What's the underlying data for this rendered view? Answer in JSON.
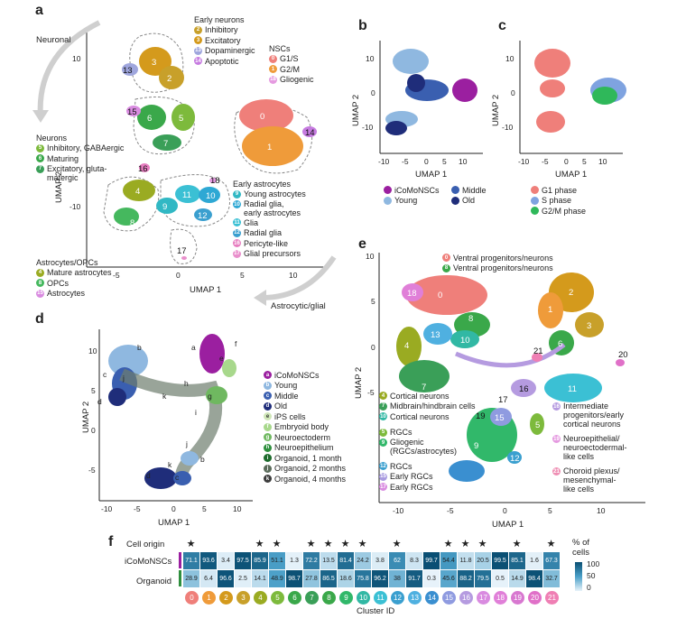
{
  "panels": [
    "a",
    "b",
    "c",
    "d",
    "e",
    "f"
  ],
  "a": {
    "neuronal_label": "Neuronal",
    "astro_glial_label": "Astrocytic/glial",
    "xlabel": "UMAP 1",
    "ylabel": "UMAP 2",
    "xticks": [
      "-5",
      "0",
      "5",
      "10"
    ],
    "yticks": [
      "10",
      "-10"
    ],
    "cluster_labels": [
      "0",
      "1",
      "2",
      "3",
      "4",
      "5",
      "6",
      "7",
      "8",
      "9",
      "10",
      "11",
      "12",
      "13",
      "14",
      "15",
      "16",
      "17",
      "18"
    ],
    "early_neurons": {
      "title": "Early neurons",
      "items": [
        {
          "id": "2",
          "label": "Inhibitory",
          "color": "#c8a02a"
        },
        {
          "id": "3",
          "label": "Excitatory",
          "color": "#d49a1c"
        },
        {
          "id": "13",
          "label": "Dopaminergic",
          "color": "#9fa6dd"
        },
        {
          "id": "14",
          "label": "Apoptotic",
          "color": "#c67be0"
        }
      ]
    },
    "nscs": {
      "title": "NSCs",
      "items": [
        {
          "id": "0",
          "label": "G1/S",
          "color": "#ef7f7a"
        },
        {
          "id": "1",
          "label": "G2/M",
          "color": "#ef9b3a"
        },
        {
          "id": "18",
          "label": "Gliogenic",
          "color": "#e59ae0"
        }
      ]
    },
    "neurons": {
      "title": "Neurons",
      "items": [
        {
          "id": "5",
          "label": "Inhibitory, GABAergic",
          "color": "#7dba3c"
        },
        {
          "id": "6",
          "label": "Maturing",
          "color": "#3aa84a"
        },
        {
          "id": "7",
          "label": "Excitatory, gluta-\nmatergic",
          "color": "#3a9f58"
        }
      ]
    },
    "early_astro": {
      "title": "Early astrocytes",
      "items": [
        {
          "id": "9",
          "label": "Young astrocytes",
          "color": "#31b8c4"
        },
        {
          "id": "10",
          "label": "Radial glia,\nearly astrocytes",
          "color": "#2ea8d4"
        },
        {
          "id": "11",
          "label": "Glia",
          "color": "#3bc0d4"
        },
        {
          "id": "12",
          "label": "Radial glia",
          "color": "#3a9fcf"
        },
        {
          "id": "16",
          "label": "Pericyte-like",
          "color": "#e77dc0"
        },
        {
          "id": "17",
          "label": "Glial precursors",
          "color": "#e98fcc"
        }
      ]
    },
    "astro_opc": {
      "title": "Astrocytes/OPCs",
      "items": [
        {
          "id": "4",
          "label": "Mature astrocytes",
          "color": "#9aab22"
        },
        {
          "id": "8",
          "label": "OPCs",
          "color": "#45b85e"
        },
        {
          "id": "15",
          "label": "Astrocytes",
          "color": "#d98be0"
        }
      ]
    }
  },
  "b": {
    "xlabel": "UMAP 1",
    "ylabel": "UMAP 2",
    "xticks": [
      "-10",
      "-5",
      "0",
      "5",
      "10"
    ],
    "yticks": [
      "10",
      "0",
      "-10"
    ],
    "legend": [
      {
        "label": "iCoMoNSCs",
        "color": "#9b1fa0"
      },
      {
        "label": "Middle",
        "color": "#3a5fb0"
      },
      {
        "label": "Young",
        "color": "#8fb8e0"
      },
      {
        "label": "Old",
        "color": "#1f2d7a"
      }
    ]
  },
  "c": {
    "xlabel": "UMAP 1",
    "ylabel": "UMAP 2",
    "xticks": [
      "-10",
      "-5",
      "0",
      "5",
      "10"
    ],
    "yticks": [
      "10",
      "0",
      "-10"
    ],
    "legend": [
      {
        "label": "G1 phase",
        "color": "#ef7f7a"
      },
      {
        "label": "S phase",
        "color": "#7fa3e0"
      },
      {
        "label": "G2/M phase",
        "color": "#2fb85a"
      }
    ]
  },
  "d": {
    "xlabel": "UMAP 1",
    "ylabel": "UMAP 2",
    "xticks": [
      "-10",
      "-5",
      "0",
      "5",
      "10"
    ],
    "yticks": [
      "10",
      "5",
      "0",
      "-5"
    ],
    "point_labels": [
      "a",
      "b",
      "c",
      "d",
      "e",
      "f",
      "g",
      "h",
      "i",
      "j",
      "k"
    ],
    "legend": [
      {
        "id": "a",
        "label": "iCoMoNSCs",
        "color": "#9b1fa0"
      },
      {
        "id": "b",
        "label": "Young",
        "color": "#8fb8e0"
      },
      {
        "id": "c",
        "label": "Middle",
        "color": "#3a5fb0"
      },
      {
        "id": "d",
        "label": "Old",
        "color": "#1f2d7a"
      },
      {
        "id": "e",
        "label": "iPS cells",
        "color": "#cfe6b8"
      },
      {
        "id": "f",
        "label": "Embryoid body",
        "color": "#a8d88c"
      },
      {
        "id": "g",
        "label": "Neuroectoderm",
        "color": "#6fb860"
      },
      {
        "id": "h",
        "label": "Neuroepithelium",
        "color": "#2f8f3e"
      },
      {
        "id": "i",
        "label": "Organoid, 1 month",
        "color": "#1d6b2c"
      },
      {
        "id": "j",
        "label": "Organoid, 2 months",
        "color": "#5a6b5a"
      },
      {
        "id": "k",
        "label": "Organoid, 4 months",
        "color": "#3c3c3c"
      }
    ]
  },
  "e": {
    "xlabel": "UMAP 1",
    "ylabel": "UMAP 2",
    "xticks": [
      "-10",
      "-5",
      "0",
      "5",
      "10"
    ],
    "yticks": [
      "10",
      "5",
      "0",
      "-5"
    ],
    "cluster_labels": [
      "0",
      "1",
      "2",
      "3",
      "4",
      "5",
      "6",
      "7",
      "8",
      "9",
      "10",
      "11",
      "12",
      "13",
      "14",
      "15",
      "16",
      "17",
      "18",
      "19",
      "20",
      "21"
    ],
    "legend_top": [
      {
        "id": "0",
        "label": "Ventral progenitors/neurons",
        "color": "#ef7f7a"
      },
      {
        "id": "8",
        "label": "Ventral progenitors/neurons",
        "color": "#3aa84a"
      }
    ],
    "legend_left": [
      {
        "id": "4",
        "label": "Cortical neurons",
        "color": "#9aab22"
      },
      {
        "id": "7",
        "label": "Midbrain/hindbrain cells",
        "color": "#3a9f58"
      },
      {
        "id": "10",
        "label": "Cortical neurons",
        "color": "#31b8a4"
      },
      {
        "id": "5",
        "label": "RGCs",
        "color": "#7dba3c"
      },
      {
        "id": "9",
        "label": "Gliogenic\n(RGCs/astrocytes)",
        "color": "#31b86a"
      },
      {
        "id": "12",
        "label": "RGCs",
        "color": "#3a9fcf"
      },
      {
        "id": "15",
        "label": "Early RGCs",
        "color": "#a99be0"
      },
      {
        "id": "17",
        "label": "Early RGCs",
        "color": "#d98be0"
      }
    ],
    "legend_right": [
      {
        "id": "16",
        "label": "Intermediate\nprogenitors/early\ncortical neurons",
        "color": "#b59be0"
      },
      {
        "id": "19",
        "label": "Neuroepithelial/\nneuroectodermal-\nlike cells",
        "color": "#e59ae0"
      },
      {
        "id": "21",
        "label": "Choroid plexus/\nmesenchymal-\nlike cells",
        "color": "#ef8fb4"
      }
    ]
  },
  "f": {
    "cell_origin_label": "Cell origin",
    "row_labels": [
      "iCoMoNSCs",
      "Organoid"
    ],
    "xlabel": "Cluster ID",
    "colorbar_title": "% of\ncells",
    "colorbar_ticks": [
      "100",
      "50",
      "0"
    ],
    "cluster_ids": [
      "0",
      "1",
      "2",
      "3",
      "4",
      "5",
      "6",
      "7",
      "8",
      "9",
      "10",
      "11",
      "12",
      "13",
      "14",
      "15",
      "16",
      "17",
      "18",
      "19",
      "20",
      "21"
    ],
    "cluster_colors": [
      "#ef7f7a",
      "#ef9b3a",
      "#d49a1c",
      "#c8a02a",
      "#9aab22",
      "#7dba3c",
      "#3aa84a",
      "#3a9f58",
      "#3aa84a",
      "#31b86a",
      "#31b8a4",
      "#3bc0d4",
      "#3a9fcf",
      "#4fb0e0",
      "#3a8fd0",
      "#8f9be0",
      "#b59be0",
      "#d98be0",
      "#e07fd8",
      "#d878d0",
      "#e070c8",
      "#ef7fb4"
    ],
    "stars": [
      true,
      false,
      false,
      false,
      true,
      true,
      false,
      true,
      true,
      true,
      true,
      false,
      true,
      false,
      false,
      true,
      true,
      true,
      false,
      true,
      false,
      true
    ],
    "icomo": [
      "71.1",
      "93.6",
      "3.4",
      "97.5",
      "85.9",
      "51.1",
      "1.3",
      "72.2",
      "13.5",
      "81.4",
      "24.2",
      "3.8",
      "62",
      "8.3",
      "99.7",
      "54.4",
      "11.8",
      "20.5",
      "99.5",
      "85.1",
      "1.6",
      "67.3"
    ],
    "organoid": [
      "28.9",
      "6.4",
      "96.6",
      "2.5",
      "14.1",
      "48.9",
      "98.7",
      "27.8",
      "86.5",
      "18.6",
      "75.8",
      "96.2",
      "38",
      "91.7",
      "0.3",
      "45.6",
      "88.2",
      "79.5",
      "0.5",
      "14.9",
      "98.4",
      "32.7"
    ]
  }
}
